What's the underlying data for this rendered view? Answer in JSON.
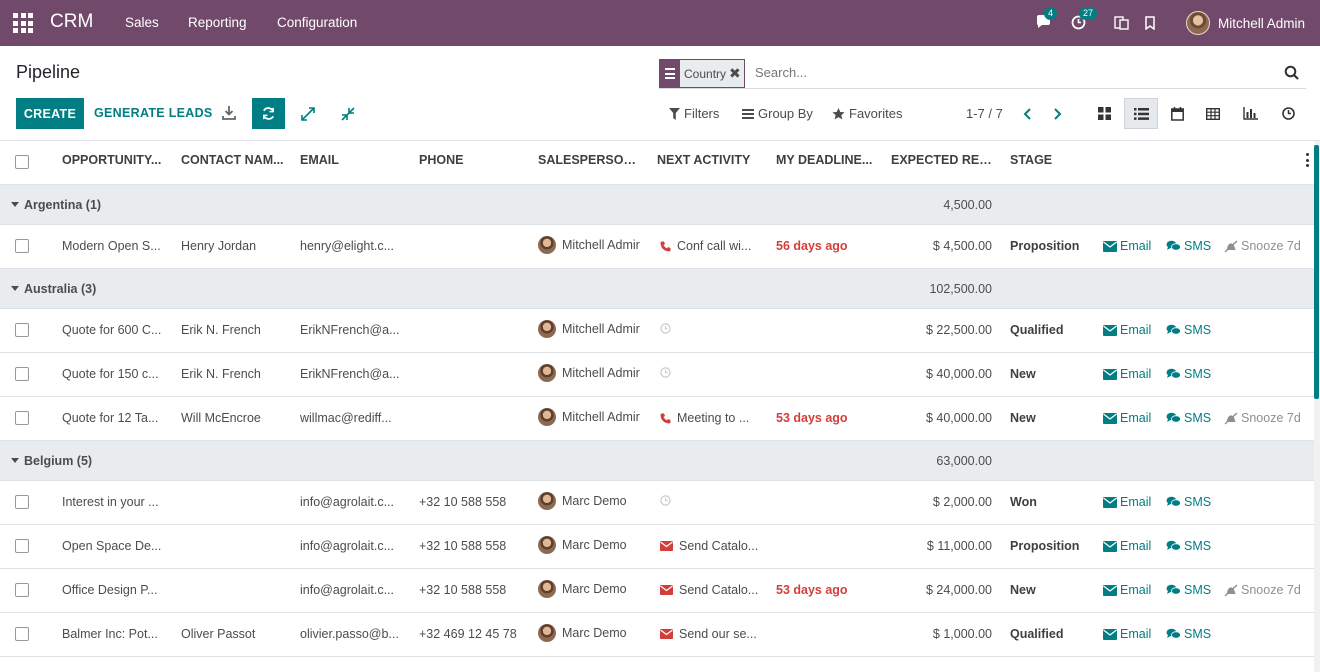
{
  "navbar": {
    "brand": "CRM",
    "menus": [
      "Sales",
      "Reporting",
      "Configuration"
    ],
    "messages_count": "4",
    "activities_count": "27",
    "user_name": "Mitchell Admin",
    "bg_color": "#71496b"
  },
  "control": {
    "title": "Pipeline",
    "facet_label": "Country",
    "search_placeholder": "Search...",
    "create_label": "CREATE",
    "generate_label": "GENERATE LEADS",
    "filters_label": "Filters",
    "groupby_label": "Group By",
    "favorites_label": "Favorites",
    "pager": "1-7 / 7"
  },
  "columns": {
    "opportunity": "OPPORTUNITY...",
    "contact": "CONTACT NAM...",
    "email": "EMAIL",
    "phone": "PHONE",
    "salesperson": "SALESPERSON...",
    "next_activity": "NEXT ACTIVITY",
    "deadline": "MY DEADLINE...",
    "revenue": "EXPECTED REV...",
    "stage": "STAGE"
  },
  "actions": {
    "email": "Email",
    "sms": "SMS",
    "snooze": "Snooze 7d"
  },
  "groups": [
    {
      "label": "Argentina (1)",
      "total": "4,500.00",
      "rows": [
        {
          "opp": "Modern Open S...",
          "contact": "Henry Jordan",
          "email": "henry@elight.c...",
          "phone": "",
          "sales": "Mitchell Admir",
          "act_icon": "phone",
          "activity": "Conf call wi...",
          "deadline": "56 days ago",
          "revenue": "$ 4,500.00",
          "stage": "Proposition",
          "snooze": true
        }
      ]
    },
    {
      "label": "Australia (3)",
      "total": "102,500.00",
      "rows": [
        {
          "opp": "Quote for 600 C...",
          "contact": "Erik N. French",
          "email": "ErikNFrench@a...",
          "phone": "",
          "sales": "Mitchell Admir",
          "act_icon": "clock",
          "activity": "",
          "deadline": "",
          "revenue": "$ 22,500.00",
          "stage": "Qualified",
          "snooze": false
        },
        {
          "opp": "Quote for 150 c...",
          "contact": "Erik N. French",
          "email": "ErikNFrench@a...",
          "phone": "",
          "sales": "Mitchell Admir",
          "act_icon": "clock",
          "activity": "",
          "deadline": "",
          "revenue": "$ 40,000.00",
          "stage": "New",
          "snooze": false
        },
        {
          "opp": "Quote for 12 Ta...",
          "contact": "Will McEncroe",
          "email": "willmac@rediff...",
          "phone": "",
          "sales": "Mitchell Admir",
          "act_icon": "phone",
          "activity": "Meeting to ...",
          "deadline": "53 days ago",
          "revenue": "$ 40,000.00",
          "stage": "New",
          "snooze": true
        }
      ]
    },
    {
      "label": "Belgium (5)",
      "total": "63,000.00",
      "rows": [
        {
          "opp": "Interest in your ...",
          "contact": "",
          "email": "info@agrolait.c...",
          "phone": "+32 10 588 558",
          "sales": "Marc Demo",
          "act_icon": "clock",
          "activity": "",
          "deadline": "",
          "revenue": "$ 2,000.00",
          "stage": "Won",
          "snooze": false
        },
        {
          "opp": "Open Space De...",
          "contact": "",
          "email": "info@agrolait.c...",
          "phone": "+32 10 588 558",
          "sales": "Marc Demo",
          "act_icon": "mail",
          "activity": "Send Catalo...",
          "deadline": "",
          "revenue": "$ 11,000.00",
          "stage": "Proposition",
          "snooze": false
        },
        {
          "opp": "Office Design P...",
          "contact": "",
          "email": "info@agrolait.c...",
          "phone": "+32 10 588 558",
          "sales": "Marc Demo",
          "act_icon": "mail",
          "activity": "Send Catalo...",
          "deadline": "53 days ago",
          "revenue": "$ 24,000.00",
          "stage": "New",
          "snooze": true
        },
        {
          "opp": "Balmer Inc: Pot...",
          "contact": "Oliver Passot",
          "email": "olivier.passo@b...",
          "phone": "+32 469 12 45 78",
          "sales": "Marc Demo",
          "act_icon": "mail",
          "activity": "Send our se...",
          "deadline": "",
          "revenue": "$ 1,000.00",
          "stage": "Qualified",
          "snooze": false
        }
      ]
    }
  ]
}
